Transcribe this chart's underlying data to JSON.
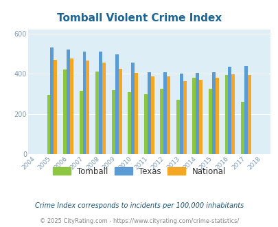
{
  "title": "Tomball Violent Crime Index",
  "years": [
    2004,
    2005,
    2006,
    2007,
    2008,
    2009,
    2010,
    2011,
    2012,
    2013,
    2014,
    2015,
    2016,
    2017,
    2018
  ],
  "tomball": [
    null,
    295,
    420,
    315,
    410,
    320,
    310,
    300,
    325,
    270,
    380,
    325,
    395,
    260,
    null
  ],
  "texas": [
    null,
    530,
    520,
    510,
    510,
    495,
    455,
    408,
    408,
    400,
    403,
    408,
    435,
    440,
    null
  ],
  "national": [
    null,
    470,
    475,
    465,
    455,
    425,
    403,
    387,
    387,
    365,
    370,
    382,
    397,
    395,
    null
  ],
  "colors": {
    "tomball": "#8dc63f",
    "texas": "#5b9bd5",
    "national": "#f5a623"
  },
  "bg_color": "#deeef6",
  "ylim": [
    0,
    620
  ],
  "yticks": [
    0,
    200,
    400,
    600
  ],
  "footnote1": "Crime Index corresponds to incidents per 100,000 inhabitants",
  "footnote2": "© 2025 CityRating.com - https://www.cityrating.com/crime-statistics/",
  "legend_labels": [
    "Tomball",
    "Texas",
    "National"
  ],
  "title_color": "#1a6496",
  "footnote1_color": "#1a5276",
  "footnote2_color": "#888888"
}
